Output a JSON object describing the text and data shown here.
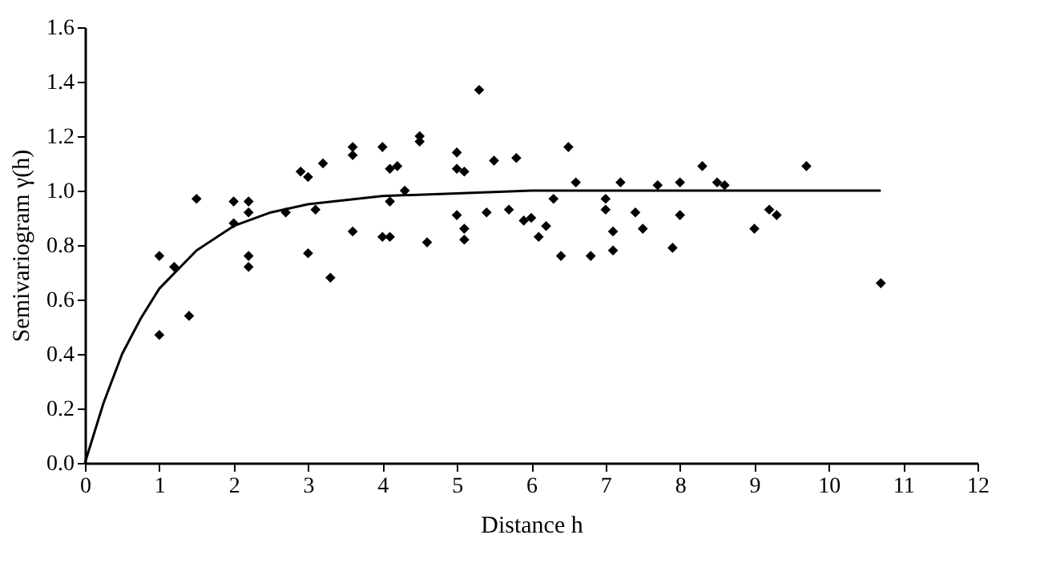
{
  "chart_data": {
    "type": "scatter",
    "xlabel": "Distance h",
    "ylabel": "Semivariogram γ(h)",
    "xlim": [
      0,
      12
    ],
    "xticks": [
      0,
      1,
      2,
      3,
      4,
      5,
      6,
      7,
      8,
      9,
      10,
      11,
      12
    ],
    "ylim": [
      0,
      1.6
    ],
    "yticks": [
      {
        "value": 0,
        "label": "0.0"
      },
      {
        "value": 0.2,
        "label": "0.2"
      },
      {
        "value": 0.4,
        "label": "0.4"
      },
      {
        "value": 0.6,
        "label": "0.6"
      },
      {
        "value": 0.8,
        "label": "0.8"
      },
      {
        "value": 1,
        "label": "1.0"
      },
      {
        "value": 1.2,
        "label": "1.2"
      },
      {
        "value": 1.4,
        "label": "1.4"
      },
      {
        "value": 1.6,
        "label": "1.6"
      }
    ],
    "grid": false,
    "marker": "diamond",
    "series": [
      {
        "type": "scatter",
        "color": "#000000",
        "x": [
          1.0,
          1.0,
          1.2,
          1.4,
          1.5,
          2.0,
          2.0,
          2.2,
          2.2,
          2.2,
          2.2,
          2.7,
          2.9,
          3.0,
          3.0,
          3.1,
          3.2,
          3.3,
          3.6,
          3.6,
          3.6,
          4.0,
          4.0,
          4.1,
          4.1,
          4.1,
          4.2,
          4.3,
          4.5,
          4.5,
          4.6,
          5.0,
          5.0,
          5.0,
          5.1,
          5.1,
          5.1,
          5.3,
          5.4,
          5.5,
          5.7,
          5.8,
          5.9,
          6.0,
          6.1,
          6.2,
          6.3,
          6.4,
          6.5,
          6.6,
          6.8,
          7.0,
          7.0,
          7.1,
          7.1,
          7.2,
          7.4,
          7.5,
          7.7,
          7.9,
          8.0,
          8.0,
          8.3,
          8.5,
          8.6,
          9.0,
          9.2,
          9.3,
          9.7,
          10.7
        ],
        "values": [
          0.76,
          0.47,
          0.72,
          0.54,
          0.97,
          0.96,
          0.88,
          0.96,
          0.92,
          0.76,
          0.72,
          0.92,
          1.07,
          1.05,
          0.77,
          0.93,
          1.1,
          0.68,
          1.13,
          1.16,
          0.85,
          1.16,
          0.83,
          0.83,
          0.96,
          1.08,
          1.09,
          1.0,
          1.2,
          1.18,
          0.81,
          1.14,
          1.08,
          0.91,
          1.07,
          0.86,
          0.82,
          1.37,
          0.92,
          1.11,
          0.93,
          1.12,
          0.89,
          0.9,
          0.83,
          0.87,
          0.97,
          0.76,
          1.16,
          1.03,
          0.76,
          0.97,
          0.93,
          0.85,
          0.78,
          1.03,
          0.92,
          0.86,
          1.02,
          0.79,
          1.03,
          0.91,
          1.09,
          1.03,
          1.02,
          0.86,
          0.93,
          0.91,
          1.09,
          0.66
        ]
      },
      {
        "type": "line",
        "color": "#000000",
        "marker": "none",
        "x": [
          0,
          0.25,
          0.5,
          0.75,
          1,
          1.5,
          2,
          2.5,
          3,
          4,
          5,
          6,
          10.7
        ],
        "values": [
          0,
          0.22,
          0.4,
          0.53,
          0.64,
          0.78,
          0.87,
          0.92,
          0.95,
          0.98,
          0.99,
          1.0,
          1.0
        ]
      }
    ]
  }
}
